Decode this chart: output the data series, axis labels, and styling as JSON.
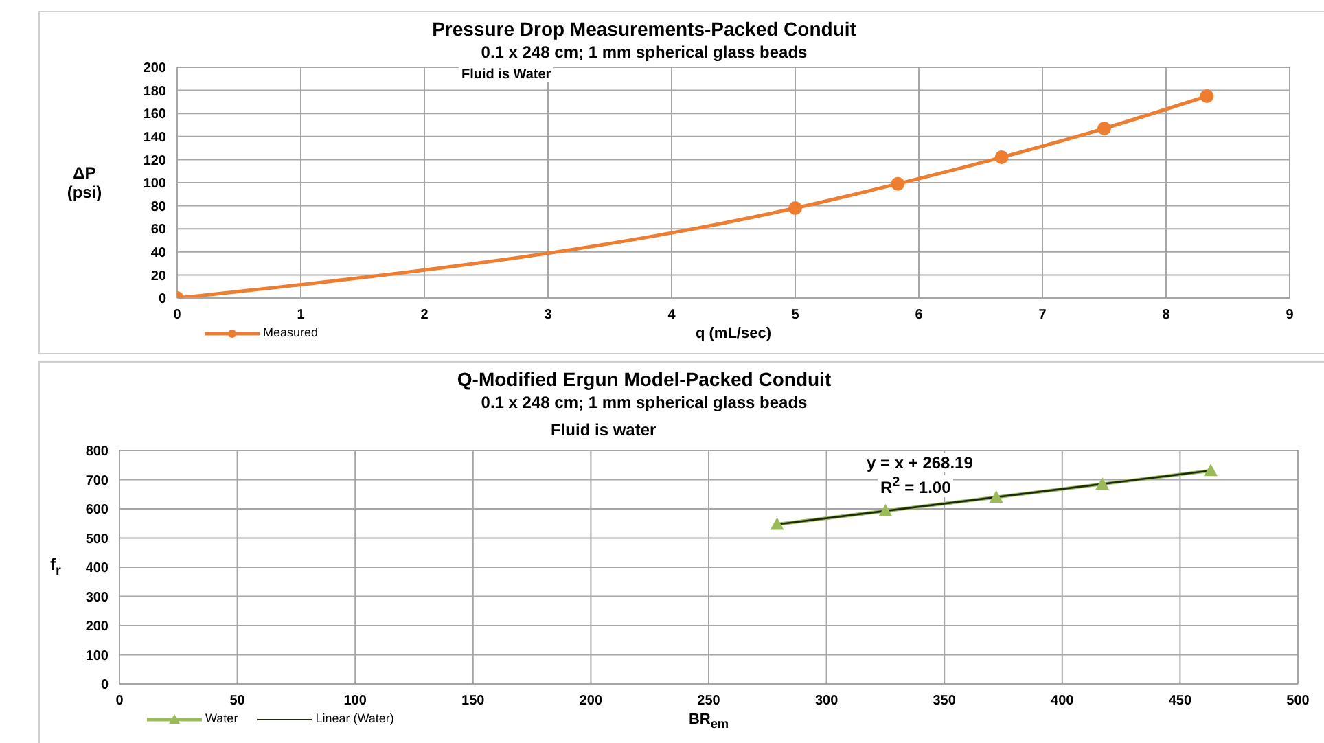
{
  "chart_data": [
    {
      "type": "line",
      "title": "Pressure Drop Measurements-Packed Conduit",
      "subtitle": "0.1 x 248 cm; 1 mm spherical glass beads",
      "annotations": [
        "Fluid is Water"
      ],
      "xlabel": "q (mL/sec)",
      "ylabel": "ΔP (psi)",
      "x": [
        0,
        5,
        5.83,
        6.67,
        7.5,
        8.33
      ],
      "series": [
        {
          "name": "Measured",
          "color": "#ed7d31",
          "values": [
            0,
            78,
            99,
            122,
            147,
            175
          ],
          "marker": "circle"
        }
      ],
      "xlim": [
        0,
        9
      ],
      "xticks": [
        0,
        1,
        2,
        3,
        4,
        5,
        6,
        7,
        8,
        9
      ],
      "ylim": [
        0,
        200
      ],
      "yticks": [
        0,
        20,
        40,
        60,
        80,
        100,
        120,
        140,
        160,
        180,
        200
      ],
      "grid": true,
      "legend": "bottom left"
    },
    {
      "type": "line",
      "title": "Q-Modified Ergun Model-Packed Conduit",
      "subtitle": "0.1 x 248 cm; 1 mm spherical glass beads",
      "annotations": [
        "Fluid is water",
        "y = x + 268.19",
        "R$^{2}$ = 1.00"
      ],
      "xlabel": "BR$_{em}$",
      "ylabel": "f$_{r}$",
      "series": [
        {
          "name": "Water",
          "color": "#9bbb59",
          "x": [
            279,
            325,
            372,
            417,
            463
          ],
          "values": [
            547,
            593,
            640,
            685,
            731
          ],
          "marker": "triangle"
        },
        {
          "name": "Linear (Water)",
          "color": "#1e2a10",
          "x": [
            279,
            463
          ],
          "values": [
            547,
            731
          ],
          "marker": "none"
        }
      ],
      "xlim": [
        0,
        500
      ],
      "xticks": [
        0,
        50,
        100,
        150,
        200,
        250,
        300,
        350,
        400,
        450,
        500
      ],
      "ylim": [
        0,
        800
      ],
      "yticks": [
        0,
        100,
        200,
        300,
        400,
        500,
        600,
        700,
        800
      ],
      "grid": true,
      "legend": "bottom left"
    }
  ]
}
